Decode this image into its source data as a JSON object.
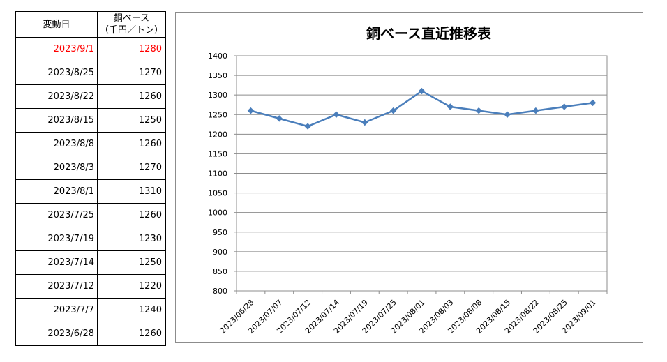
{
  "table": {
    "header_date": "変動日",
    "header_price_line1": "銅ベース",
    "header_price_line2": "（千円／トン）",
    "highlight_color": "#ff0000",
    "rows": [
      {
        "date": "2023/9/1",
        "price": "1280"
      },
      {
        "date": "2023/8/25",
        "price": "1270"
      },
      {
        "date": "2023/8/22",
        "price": "1260"
      },
      {
        "date": "2023/8/15",
        "price": "1250"
      },
      {
        "date": "2023/8/8",
        "price": "1260"
      },
      {
        "date": "2023/8/3",
        "price": "1270"
      },
      {
        "date": "2023/8/1",
        "price": "1310"
      },
      {
        "date": "2023/7/25",
        "price": "1260"
      },
      {
        "date": "2023/7/19",
        "price": "1230"
      },
      {
        "date": "2023/7/14",
        "price": "1250"
      },
      {
        "date": "2023/7/12",
        "price": "1220"
      },
      {
        "date": "2023/7/7",
        "price": "1240"
      },
      {
        "date": "2023/6/28",
        "price": "1260"
      }
    ]
  },
  "chart_data": {
    "type": "line",
    "title": "銅ベース直近推移表",
    "categories": [
      "2023/06/28",
      "2023/07/07",
      "2023/07/12",
      "2023/07/14",
      "2023/07/19",
      "2023/07/25",
      "2023/08/01",
      "2023/08/03",
      "2023/08/08",
      "2023/08/15",
      "2023/08/22",
      "2023/08/25",
      "2023/09/01"
    ],
    "series": [
      {
        "values": [
          1260,
          1240,
          1220,
          1250,
          1230,
          1260,
          1310,
          1270,
          1260,
          1250,
          1260,
          1270,
          1280
        ],
        "color": "#4a7ebb"
      }
    ],
    "ylim": [
      800,
      1400
    ],
    "yticks": [
      800,
      850,
      900,
      950,
      1000,
      1050,
      1100,
      1150,
      1200,
      1250,
      1300,
      1350,
      1400
    ],
    "grid": true,
    "marker": "diamond"
  }
}
